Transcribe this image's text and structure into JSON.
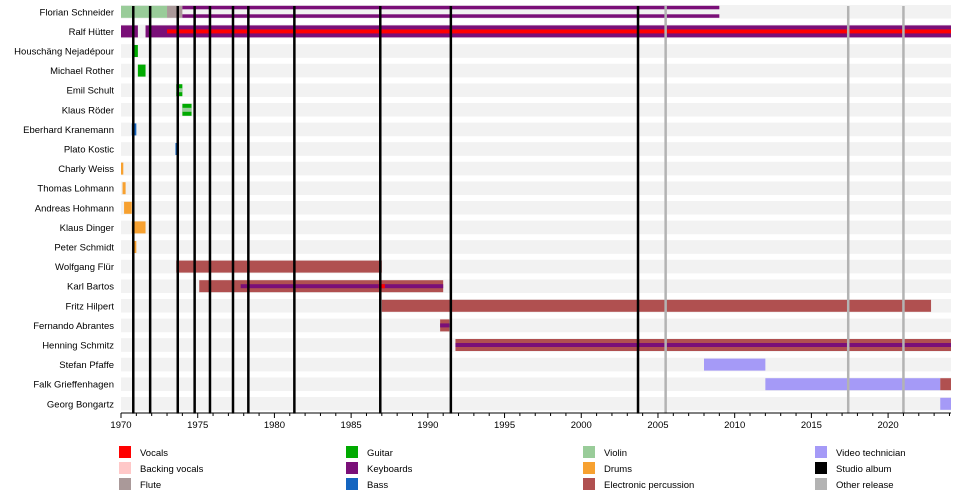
{
  "chart_data": {
    "type": "timeline",
    "title": "",
    "xlim": [
      1970,
      2024.1
    ],
    "xticks": [
      "1970",
      "1975",
      "1980",
      "1985",
      "1990",
      "1995",
      "2000",
      "2005",
      "2010",
      "2015",
      "2020"
    ],
    "colors": {
      "vocals": "#ff0000",
      "backing_vocals": "#ffc8c8",
      "flute": "#aa9999",
      "guitar": "#00aa00",
      "keyboards": "#7a0f78",
      "bass": "#1565c0",
      "violin": "#99cc99",
      "drums": "#f7a130",
      "electronic_percussion": "#b05050",
      "video_technician": "#a59af7",
      "studio_album": "#000000",
      "other_release": "#b3b3b3",
      "row_band": "#f2f2f2"
    },
    "members": [
      {
        "name": "Florian Schneider",
        "roles": [
          {
            "role": "violin",
            "start": 1970.0,
            "end": 1973.0
          },
          {
            "role": "flute",
            "start": 1973.0,
            "end": 1974.0
          },
          {
            "role": "keyboards",
            "start": 1974.0,
            "end": 2009.0,
            "style": "outline"
          }
        ]
      },
      {
        "name": "Ralf Hütter",
        "roles": [
          {
            "role": "keyboards",
            "start": 1970.0,
            "end": 1971.1
          },
          {
            "role": "keyboards",
            "start": 1971.6,
            "end": 2024.1
          },
          {
            "role": "vocals",
            "start": 1973.0,
            "end": 2024.1,
            "style": "stripe"
          }
        ]
      },
      {
        "name": "Houschäng Nejadépour",
        "roles": [
          {
            "role": "guitar",
            "start": 1970.8,
            "end": 1971.1
          }
        ]
      },
      {
        "name": "Michael Rother",
        "roles": [
          {
            "role": "guitar",
            "start": 1971.1,
            "end": 1971.6
          }
        ]
      },
      {
        "name": "Emil Schult",
        "roles": [
          {
            "role": "guitar",
            "start": 1973.6,
            "end": 1974.0
          },
          {
            "role": "violin",
            "start": 1973.6,
            "end": 1974.0,
            "style": "stripe"
          }
        ]
      },
      {
        "name": "Klaus Röder",
        "roles": [
          {
            "role": "guitar",
            "start": 1974.0,
            "end": 1974.6
          },
          {
            "role": "violin",
            "start": 1974.0,
            "end": 1974.6,
            "style": "stripe"
          }
        ]
      },
      {
        "name": "Eberhard Kranemann",
        "roles": [
          {
            "role": "bass",
            "start": 1970.7,
            "end": 1971.0
          }
        ]
      },
      {
        "name": "Plato Kostic",
        "roles": [
          {
            "role": "bass",
            "start": 1973.55,
            "end": 1973.65
          }
        ]
      },
      {
        "name": "Charly Weiss",
        "roles": [
          {
            "role": "drums",
            "start": 1970.0,
            "end": 1970.15
          }
        ]
      },
      {
        "name": "Thomas Lohmann",
        "roles": [
          {
            "role": "drums",
            "start": 1970.1,
            "end": 1970.3
          }
        ]
      },
      {
        "name": "Andreas Hohmann",
        "roles": [
          {
            "role": "drums",
            "start": 1970.2,
            "end": 1970.7
          }
        ]
      },
      {
        "name": "Klaus Dinger",
        "roles": [
          {
            "role": "drums",
            "start": 1970.7,
            "end": 1971.6
          }
        ]
      },
      {
        "name": "Peter Schmidt",
        "roles": [
          {
            "role": "drums",
            "start": 1970.8,
            "end": 1971.0
          }
        ]
      },
      {
        "name": "Wolfgang Flür",
        "roles": [
          {
            "role": "electronic_percussion",
            "start": 1973.6,
            "end": 1987.0
          }
        ]
      },
      {
        "name": "Karl Bartos",
        "roles": [
          {
            "role": "electronic_percussion",
            "start": 1975.1,
            "end": 1991.0
          },
          {
            "role": "keyboards",
            "start": 1977.8,
            "end": 1991.0,
            "style": "stripe"
          },
          {
            "role": "vocals",
            "start": 1986.8,
            "end": 1987.2,
            "style": "stripe"
          }
        ]
      },
      {
        "name": "Fritz Hilpert",
        "roles": [
          {
            "role": "electronic_percussion",
            "start": 1987.0,
            "end": 2022.8
          }
        ]
      },
      {
        "name": "Fernando Abrantes",
        "roles": [
          {
            "role": "electronic_percussion",
            "start": 1990.8,
            "end": 1991.4
          },
          {
            "role": "keyboards",
            "start": 1990.8,
            "end": 1991.4,
            "style": "stripe"
          }
        ]
      },
      {
        "name": "Henning Schmitz",
        "roles": [
          {
            "role": "electronic_percussion",
            "start": 1991.8,
            "end": 2024.1
          },
          {
            "role": "keyboards",
            "start": 1991.8,
            "end": 2024.1,
            "style": "stripe"
          }
        ]
      },
      {
        "name": "Stefan Pfaffe",
        "roles": [
          {
            "role": "video_technician",
            "start": 2008.0,
            "end": 2012.0
          }
        ]
      },
      {
        "name": "Falk Grieffenhagen",
        "roles": [
          {
            "role": "video_technician",
            "start": 2012.0,
            "end": 2023.4
          },
          {
            "role": "electronic_percussion",
            "start": 2023.4,
            "end": 2024.1
          }
        ]
      },
      {
        "name": "Georg Bongartz",
        "roles": [
          {
            "role": "video_technician",
            "start": 2023.4,
            "end": 2024.1
          }
        ]
      }
    ],
    "studio_albums": [
      1970.8,
      1971.9,
      1973.7,
      1974.8,
      1975.8,
      1977.3,
      1978.3,
      1981.3,
      1986.9,
      1991.5,
      2003.7
    ],
    "other_releases": [
      2005.5,
      2017.4,
      2021.0
    ],
    "legend": [
      [
        {
          "key": "vocals",
          "label": "Vocals"
        },
        {
          "key": "backing_vocals",
          "label": "Backing vocals"
        },
        {
          "key": "flute",
          "label": "Flute"
        }
      ],
      [
        {
          "key": "guitar",
          "label": "Guitar"
        },
        {
          "key": "keyboards",
          "label": "Keyboards"
        },
        {
          "key": "bass",
          "label": "Bass"
        }
      ],
      [
        {
          "key": "violin",
          "label": "Violin"
        },
        {
          "key": "drums",
          "label": "Drums"
        },
        {
          "key": "electronic_percussion",
          "label": "Electronic percussion"
        }
      ],
      [
        {
          "key": "video_technician",
          "label": "Video technician"
        },
        {
          "key": "studio_album",
          "label": "Studio album"
        },
        {
          "key": "other_release",
          "label": "Other release"
        }
      ]
    ]
  }
}
